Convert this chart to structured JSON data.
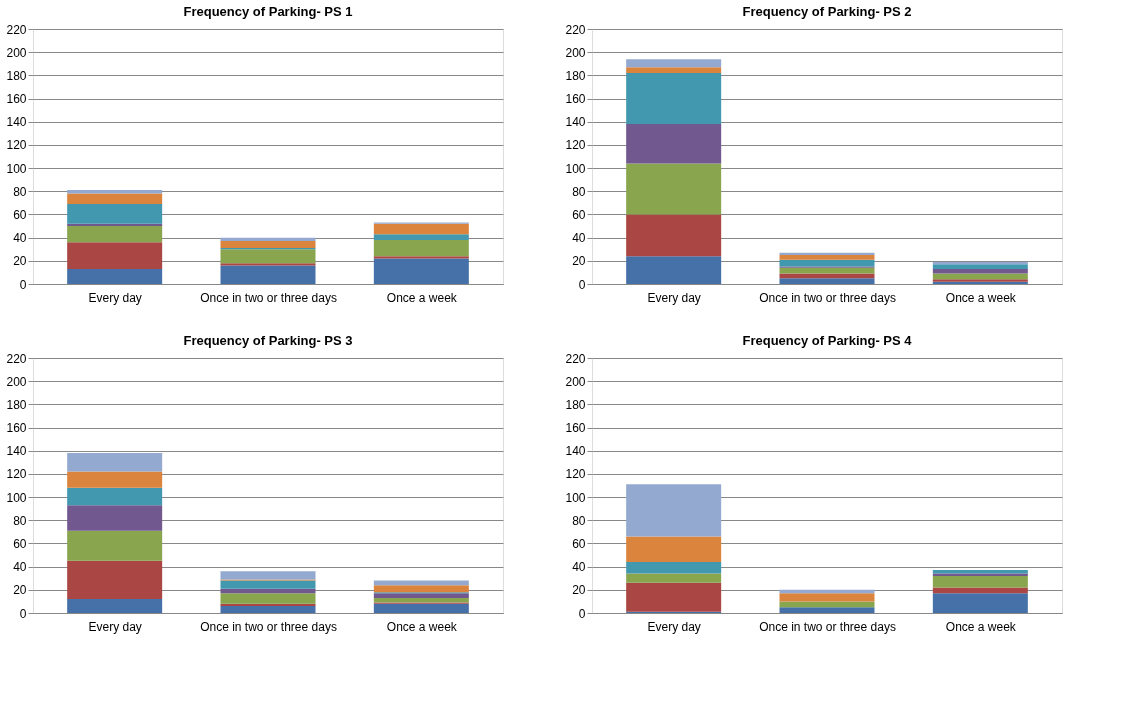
{
  "chart_data": [
    {
      "type": "bar",
      "title": "Frequency of Parking- PS 1",
      "categories": [
        "Every day",
        "Once in two or three days",
        "Once a week"
      ],
      "stacked": true,
      "ylim": [
        0,
        220
      ],
      "yticks": [
        0,
        20,
        40,
        60,
        80,
        100,
        120,
        140,
        160,
        180,
        200,
        220
      ],
      "grid": "y",
      "legend": false,
      "series": [
        {
          "color": "#4570a8",
          "values": [
            13,
            16,
            22
          ]
        },
        {
          "color": "#aa4644",
          "values": [
            23,
            2,
            2
          ]
        },
        {
          "color": "#89a54e",
          "values": [
            14,
            12,
            14
          ]
        },
        {
          "color": "#71588f",
          "values": [
            2,
            0,
            0
          ]
        },
        {
          "color": "#4198af",
          "values": [
            17,
            1,
            5
          ]
        },
        {
          "color": "#db843d",
          "values": [
            9,
            6,
            9
          ]
        },
        {
          "color": "#93a9cf",
          "values": [
            3,
            3,
            1
          ]
        }
      ]
    },
    {
      "type": "bar",
      "title": "Frequency of Parking- PS 2",
      "categories": [
        "Every day",
        "Once in two or three days",
        "Once a week"
      ],
      "stacked": true,
      "ylim": [
        0,
        220
      ],
      "yticks": [
        0,
        20,
        40,
        60,
        80,
        100,
        120,
        140,
        160,
        180,
        200,
        220
      ],
      "grid": "y",
      "legend": false,
      "series": [
        {
          "color": "#4570a8",
          "values": [
            24,
            5,
            2
          ]
        },
        {
          "color": "#aa4644",
          "values": [
            36,
            4,
            2
          ]
        },
        {
          "color": "#89a54e",
          "values": [
            44,
            5,
            5
          ]
        },
        {
          "color": "#71588f",
          "values": [
            34,
            1,
            4
          ]
        },
        {
          "color": "#4198af",
          "values": [
            44,
            6,
            4
          ]
        },
        {
          "color": "#db843d",
          "values": [
            5,
            4,
            0
          ]
        },
        {
          "color": "#93a9cf",
          "values": [
            7,
            2,
            2
          ]
        }
      ]
    },
    {
      "type": "bar",
      "title": "Frequency of Parking- PS 3",
      "categories": [
        "Every day",
        "Once in two or three days",
        "Once a week"
      ],
      "stacked": true,
      "ylim": [
        0,
        220
      ],
      "yticks": [
        0,
        20,
        40,
        60,
        80,
        100,
        120,
        140,
        160,
        180,
        200,
        220
      ],
      "grid": "y",
      "legend": false,
      "series": [
        {
          "color": "#4570a8",
          "values": [
            12,
            6,
            8
          ]
        },
        {
          "color": "#aa4644",
          "values": [
            33,
            2,
            1
          ]
        },
        {
          "color": "#89a54e",
          "values": [
            26,
            9,
            4
          ]
        },
        {
          "color": "#71588f",
          "values": [
            22,
            4,
            4
          ]
        },
        {
          "color": "#4198af",
          "values": [
            15,
            7,
            1
          ]
        },
        {
          "color": "#db843d",
          "values": [
            14,
            1,
            6
          ]
        },
        {
          "color": "#93a9cf",
          "values": [
            16,
            7,
            4
          ]
        }
      ]
    },
    {
      "type": "bar",
      "title": "Frequency of Parking- PS 4",
      "categories": [
        "Every day",
        "Once in two or three days",
        "Once a week"
      ],
      "stacked": true,
      "ylim": [
        0,
        220
      ],
      "yticks": [
        0,
        20,
        40,
        60,
        80,
        100,
        120,
        140,
        160,
        180,
        200,
        220
      ],
      "grid": "y",
      "legend": false,
      "series": [
        {
          "color": "#4570a8",
          "values": [
            1,
            5,
            17
          ]
        },
        {
          "color": "#aa4644",
          "values": [
            25,
            0,
            5
          ]
        },
        {
          "color": "#89a54e",
          "values": [
            8,
            5,
            10
          ]
        },
        {
          "color": "#71588f",
          "values": [
            0,
            0,
            2
          ]
        },
        {
          "color": "#4198af",
          "values": [
            10,
            0,
            3
          ]
        },
        {
          "color": "#db843d",
          "values": [
            22,
            7,
            0
          ]
        },
        {
          "color": "#93a9cf",
          "values": [
            45,
            3,
            0
          ]
        }
      ]
    }
  ]
}
